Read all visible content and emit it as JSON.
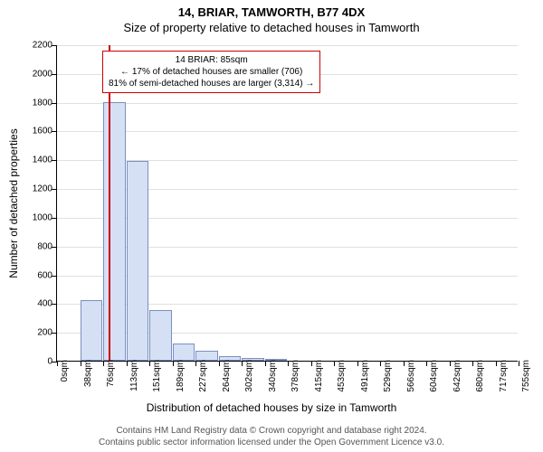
{
  "title_line1": "14, BRIAR, TAMWORTH, B77 4DX",
  "title_line2": "Size of property relative to detached houses in Tamworth",
  "ylabel": "Number of detached properties",
  "xlabel": "Distribution of detached houses by size in Tamworth",
  "footnote_line1": "Contains HM Land Registry data © Crown copyright and database right 2024.",
  "footnote_line2": "Contains public sector information licensed under the Open Government Licence v3.0.",
  "chart": {
    "type": "histogram",
    "plot_bg": "#ffffff",
    "grid_color": "#e0e0e0",
    "bar_fill": "#d6e0f5",
    "bar_stroke": "#7a8fc0",
    "ref_line_color": "#cc0000",
    "ylim_max": 2200,
    "ytick_step": 200,
    "xticks": [
      {
        "pos": 0,
        "label": "0sqm"
      },
      {
        "pos": 1,
        "label": "38sqm"
      },
      {
        "pos": 2,
        "label": "76sqm"
      },
      {
        "pos": 3,
        "label": "113sqm"
      },
      {
        "pos": 4,
        "label": "151sqm"
      },
      {
        "pos": 5,
        "label": "189sqm"
      },
      {
        "pos": 6,
        "label": "227sqm"
      },
      {
        "pos": 7,
        "label": "264sqm"
      },
      {
        "pos": 8,
        "label": "302sqm"
      },
      {
        "pos": 9,
        "label": "340sqm"
      },
      {
        "pos": 10,
        "label": "378sqm"
      },
      {
        "pos": 11,
        "label": "415sqm"
      },
      {
        "pos": 12,
        "label": "453sqm"
      },
      {
        "pos": 13,
        "label": "491sqm"
      },
      {
        "pos": 14,
        "label": "529sqm"
      },
      {
        "pos": 15,
        "label": "566sqm"
      },
      {
        "pos": 16,
        "label": "604sqm"
      },
      {
        "pos": 17,
        "label": "642sqm"
      },
      {
        "pos": 18,
        "label": "680sqm"
      },
      {
        "pos": 19,
        "label": "717sqm"
      },
      {
        "pos": 20,
        "label": "755sqm"
      }
    ],
    "bars": [
      {
        "bin": 0,
        "value": 0
      },
      {
        "bin": 1,
        "value": 420
      },
      {
        "bin": 2,
        "value": 1800
      },
      {
        "bin": 3,
        "value": 1390
      },
      {
        "bin": 4,
        "value": 350
      },
      {
        "bin": 5,
        "value": 120
      },
      {
        "bin": 6,
        "value": 70
      },
      {
        "bin": 7,
        "value": 30
      },
      {
        "bin": 8,
        "value": 20
      },
      {
        "bin": 9,
        "value": 10
      },
      {
        "bin": 10,
        "value": 0
      },
      {
        "bin": 11,
        "value": 0
      },
      {
        "bin": 12,
        "value": 0
      },
      {
        "bin": 13,
        "value": 0
      },
      {
        "bin": 14,
        "value": 0
      },
      {
        "bin": 15,
        "value": 0
      },
      {
        "bin": 16,
        "value": 0
      },
      {
        "bin": 17,
        "value": 0
      },
      {
        "bin": 18,
        "value": 0
      },
      {
        "bin": 19,
        "value": 0
      }
    ],
    "ref_line_xvalue": 85,
    "x_max": 755
  },
  "annot": {
    "line1": "14 BRIAR: 85sqm",
    "line2": "← 17% of detached houses are smaller (706)",
    "line3": "81% of semi-detached houses are larger (3,314) →"
  }
}
